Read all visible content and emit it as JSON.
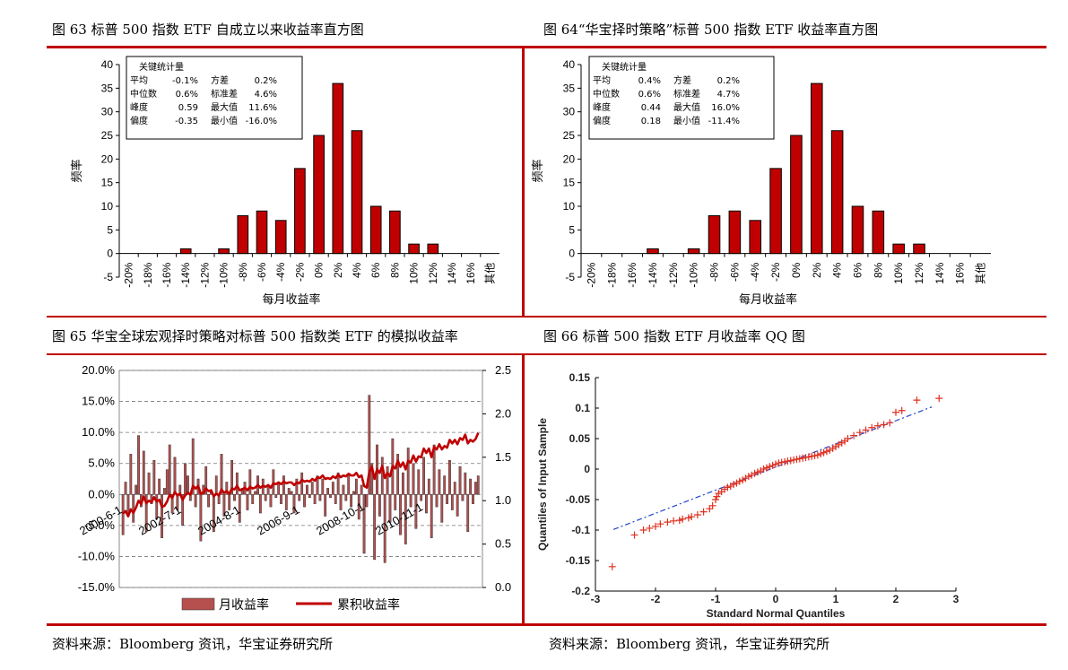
{
  "colors": {
    "accent_red": "#c00000",
    "bar_fill": "#c00000",
    "bar_brown": "#b5504e",
    "qq_marker": "#e03020",
    "qq_line": "#2244cc"
  },
  "titles": {
    "fig63": "图 63 标普 500 指数 ETF 自成立以来收益率直方图",
    "fig64": "图 64“华宝择时策略”标普 500 指数 ETF 收益率直方图",
    "fig65": "图 65 华宝全球宏观择时策略对标普 500 指数类 ETF 的模拟收益率",
    "fig66": "图 66 标普 500 指数 ETF 月收益率 QQ 图"
  },
  "sources": {
    "left": "资料来源：Bloomberg 资讯，华宝证券研究所",
    "right": "资料来源：Bloomberg 资讯，华宝证券研究所"
  },
  "chart_data": [
    {
      "id": "fig63",
      "type": "bar",
      "categories": [
        "-20%",
        "-18%",
        "-16%",
        "-14%",
        "-12%",
        "-10%",
        "-8%",
        "-6%",
        "-4%",
        "-2%",
        "0%",
        "2%",
        "4%",
        "6%",
        "8%",
        "10%",
        "12%",
        "14%",
        "16%",
        "其他"
      ],
      "values": [
        0,
        0,
        0,
        1,
        0,
        1,
        8,
        9,
        7,
        18,
        25,
        36,
        26,
        10,
        9,
        2,
        2,
        0,
        0,
        0
      ],
      "xlabel": "每月收益率",
      "ylabel": "频率",
      "ylim": [
        -5,
        40
      ],
      "yticks": [
        -5,
        0,
        5,
        10,
        15,
        20,
        25,
        30,
        35,
        40
      ],
      "stats_box": {
        "title": "关键统计量",
        "rows": [
          [
            "平均",
            "-0.1%",
            "方差",
            "0.2%"
          ],
          [
            "中位数",
            "0.6%",
            "标准差",
            "4.6%"
          ],
          [
            "峰度",
            "0.59",
            "最大值",
            "11.6%"
          ],
          [
            "偏度",
            "-0.35",
            "最小值",
            "-16.0%"
          ]
        ]
      }
    },
    {
      "id": "fig64",
      "type": "bar",
      "categories": [
        "-20%",
        "-18%",
        "-16%",
        "-14%",
        "-12%",
        "-10%",
        "-8%",
        "-6%",
        "-4%",
        "-2%",
        "0%",
        "2%",
        "4%",
        "6%",
        "8%",
        "10%",
        "12%",
        "14%",
        "16%",
        "其他"
      ],
      "values": [
        0,
        0,
        0,
        1,
        0,
        1,
        8,
        9,
        7,
        18,
        25,
        36,
        26,
        10,
        9,
        2,
        2,
        0,
        0,
        0
      ],
      "xlabel": "每月收益率",
      "ylabel": "频率",
      "ylim": [
        -5,
        40
      ],
      "yticks": [
        -5,
        0,
        5,
        10,
        15,
        20,
        25,
        30,
        35,
        40
      ],
      "stats_box": {
        "title": "关键统计量",
        "rows": [
          [
            "平均",
            "0.4%",
            "方差",
            "0.2%"
          ],
          [
            "中位数",
            "0.6%",
            "标准差",
            "4.7%"
          ],
          [
            "峰度",
            "0.44",
            "最大值",
            "16.0%"
          ],
          [
            "偏度",
            "0.18",
            "最小值",
            "-11.4%"
          ]
        ]
      }
    },
    {
      "id": "fig65",
      "type": "bar",
      "left_axis": {
        "ticks": [
          "20.0%",
          "15.0%",
          "10.0%",
          "5.0%",
          "0.0%",
          "-5.0%",
          "-10.0%",
          "-15.0%"
        ],
        "ylim": [
          -15,
          20
        ]
      },
      "right_axis": {
        "ticks": [
          "2.5",
          "2.0",
          "1.5",
          "1.0",
          "0.5",
          "0.0"
        ],
        "ylim": [
          0,
          2.5
        ]
      },
      "date_labels": [
        "2000-6-1",
        "2002-7-1",
        "2004-8-1",
        "2006-9-1",
        "2008-10-1",
        "2010-11-1"
      ],
      "series": [
        {
          "name": "月收益率",
          "kind": "bar",
          "values": [
            -6.5,
            2.0,
            -3.0,
            6.5,
            -4.5,
            1.5,
            9.5,
            -2.0,
            7.0,
            -6.0,
            3.5,
            -1.5,
            5.5,
            -4.0,
            2.5,
            -7.0,
            1.0,
            4.0,
            8.0,
            -3.0,
            6.0,
            -2.5,
            1.5,
            -5.0,
            5.0,
            3.0,
            -1.0,
            9.0,
            -2.0,
            2.5,
            -7.5,
            1.5,
            4.5,
            -2.0,
            0.5,
            -6.0,
            3.0,
            -1.5,
            6.5,
            -3.5,
            2.0,
            -2.5,
            5.5,
            -1.0,
            3.5,
            -4.5,
            1.0,
            2.0,
            -2.5,
            4.0,
            -1.5,
            0.5,
            3.0,
            -3.0,
            2.5,
            -1.0,
            1.5,
            -2.0,
            4.0,
            -0.5,
            2.0,
            -1.5,
            3.0,
            -2.5,
            1.0,
            0.5,
            -3.0,
            2.5,
            -1.0,
            3.5,
            -2.0,
            1.5,
            -0.5,
            2.0,
            -1.5,
            3.0,
            -1.0,
            2.5,
            -3.5,
            1.0,
            -0.5,
            2.0,
            -1.5,
            3.5,
            -2.5,
            1.5,
            -1.0,
            3.0,
            -2.0,
            0.5,
            2.5,
            -4.0,
            1.5,
            -9.5,
            -2.0,
            16.0,
            5.0,
            -10.5,
            8.0,
            -3.5,
            6.0,
            -11.0,
            4.5,
            -4.5,
            9.0,
            -2.5,
            6.5,
            -6.5,
            3.5,
            -8.0,
            7.5,
            -2.0,
            5.0,
            -5.5,
            4.0,
            -1.0,
            6.0,
            -3.0,
            2.5,
            -7.0,
            8.0,
            -2.0,
            4.0,
            -4.5,
            3.0,
            -1.5,
            5.5,
            -2.5,
            2.0,
            -3.5,
            4.5,
            -1.0,
            3.5,
            -6.0,
            2.5,
            -1.5,
            2.0,
            3.0
          ]
        },
        {
          "name": "累积收益率",
          "kind": "line",
          "values": [
            0.85,
            0.88,
            0.82,
            0.9,
            0.86,
            0.92,
            1.0,
            0.96,
            1.05,
            0.97,
            1.0,
            0.98,
            1.04,
            0.99,
            1.01,
            0.93,
            0.94,
            0.99,
            1.07,
            1.03,
            1.1,
            1.06,
            1.08,
            1.01,
            1.06,
            1.09,
            1.07,
            1.17,
            1.14,
            1.17,
            1.08,
            1.09,
            1.14,
            1.11,
            1.12,
            1.05,
            1.08,
            1.06,
            1.13,
            1.09,
            1.11,
            1.08,
            1.14,
            1.13,
            1.17,
            1.12,
            1.13,
            1.15,
            1.12,
            1.16,
            1.14,
            1.15,
            1.18,
            1.15,
            1.17,
            1.16,
            1.18,
            1.15,
            1.2,
            1.19,
            1.21,
            1.19,
            1.22,
            1.2,
            1.21,
            1.21,
            1.18,
            1.21,
            1.2,
            1.24,
            1.22,
            1.23,
            1.22,
            1.25,
            1.23,
            1.27,
            1.26,
            1.29,
            1.25,
            1.26,
            1.25,
            1.28,
            1.26,
            1.3,
            1.27,
            1.29,
            1.28,
            1.31,
            1.29,
            1.29,
            1.32,
            1.27,
            1.29,
            1.17,
            1.15,
            1.33,
            1.39,
            1.25,
            1.36,
            1.32,
            1.4,
            1.26,
            1.32,
            1.28,
            1.4,
            1.37,
            1.46,
            1.39,
            1.44,
            1.36,
            1.46,
            1.44,
            1.52,
            1.45,
            1.51,
            1.5,
            1.6,
            1.55,
            1.6,
            1.5,
            1.62,
            1.59,
            1.65,
            1.59,
            1.63,
            1.61,
            1.7,
            1.66,
            1.7,
            1.65,
            1.72,
            1.7,
            1.76,
            1.66,
            1.7,
            1.68,
            1.71,
            1.78
          ]
        }
      ],
      "legend": [
        "月收益率",
        "累积收益率"
      ]
    },
    {
      "id": "fig66",
      "type": "scatter",
      "xlabel": "Standard Normal Quantiles",
      "ylabel": "Quantiles of Input Sample",
      "xlim": [
        -3,
        3
      ],
      "ylim": [
        -0.2,
        0.15
      ],
      "xticks": [
        "-3",
        "-2",
        "-1",
        "0",
        "1",
        "2",
        "3"
      ],
      "yticks": [
        "0.15",
        "0.1",
        "0.05",
        "0",
        "-0.05",
        "-0.1",
        "-0.15",
        "-0.2"
      ],
      "reference_line": {
        "x": [
          -2.7,
          2.6
        ],
        "y": [
          -0.099,
          0.102
        ]
      },
      "points": {
        "x": [
          -2.72,
          -2.35,
          -2.2,
          -2.1,
          -2.0,
          -1.92,
          -1.8,
          -1.7,
          -1.6,
          -1.55,
          -1.45,
          -1.4,
          -1.3,
          -1.2,
          -1.1,
          -1.05,
          -1.0,
          -0.98,
          -0.95,
          -0.9,
          -0.85,
          -0.8,
          -0.75,
          -0.7,
          -0.65,
          -0.6,
          -0.55,
          -0.5,
          -0.45,
          -0.4,
          -0.35,
          -0.3,
          -0.25,
          -0.2,
          -0.15,
          -0.1,
          -0.05,
          0.0,
          0.05,
          0.1,
          0.15,
          0.2,
          0.25,
          0.3,
          0.35,
          0.4,
          0.45,
          0.5,
          0.55,
          0.6,
          0.65,
          0.7,
          0.75,
          0.8,
          0.85,
          0.9,
          0.95,
          1.0,
          1.05,
          1.1,
          1.15,
          1.2,
          1.3,
          1.4,
          1.5,
          1.6,
          1.7,
          1.8,
          1.9,
          2.0,
          2.1,
          2.35,
          2.72
        ],
        "y": [
          -0.16,
          -0.108,
          -0.1,
          -0.097,
          -0.094,
          -0.09,
          -0.087,
          -0.085,
          -0.084,
          -0.082,
          -0.08,
          -0.078,
          -0.075,
          -0.07,
          -0.065,
          -0.06,
          -0.05,
          -0.045,
          -0.04,
          -0.037,
          -0.033,
          -0.03,
          -0.028,
          -0.025,
          -0.023,
          -0.02,
          -0.018,
          -0.015,
          -0.012,
          -0.01,
          -0.007,
          -0.005,
          -0.003,
          0.0,
          0.002,
          0.004,
          0.006,
          0.008,
          0.01,
          0.011,
          0.012,
          0.013,
          0.014,
          0.015,
          0.016,
          0.017,
          0.018,
          0.019,
          0.02,
          0.021,
          0.022,
          0.023,
          0.025,
          0.027,
          0.029,
          0.031,
          0.034,
          0.037,
          0.04,
          0.043,
          0.046,
          0.05,
          0.055,
          0.06,
          0.064,
          0.068,
          0.071,
          0.073,
          0.076,
          0.093,
          0.096,
          0.113,
          0.116
        ]
      }
    }
  ]
}
